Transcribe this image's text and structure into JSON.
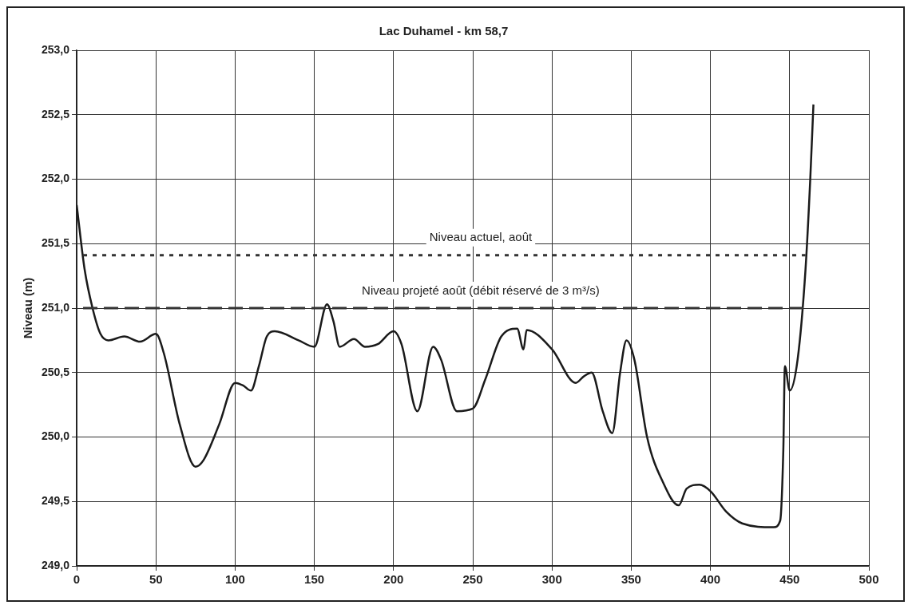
{
  "chart_data": {
    "type": "line",
    "title": "Lac Duhamel - km 58,7",
    "ylabel": "Niveau (m)",
    "xlim": [
      0,
      500
    ],
    "xticks": [
      0,
      50,
      100,
      150,
      200,
      250,
      300,
      350,
      400,
      450,
      500
    ],
    "ylim": [
      249,
      253
    ],
    "yticks": [
      {
        "value": 249,
        "label": "249,0"
      },
      {
        "value": 249.5,
        "label": "249,5"
      },
      {
        "value": 250,
        "label": "250,0"
      },
      {
        "value": 250.5,
        "label": "250,5"
      },
      {
        "value": 251,
        "label": "251,0"
      },
      {
        "value": 251.5,
        "label": "251,5"
      },
      {
        "value": 252,
        "label": "252,0"
      },
      {
        "value": 252.5,
        "label": "252,5"
      },
      {
        "value": 253,
        "label": "253,0"
      }
    ],
    "grid": true,
    "legend": false,
    "marker": "none",
    "line_style": "solid",
    "series": [
      {
        "color": "#1a1a1a",
        "x": [
          0,
          5,
          10,
          15,
          20,
          30,
          40,
          50,
          55,
          65,
          75,
          80,
          90,
          100,
          105,
          110,
          115,
          120,
          125,
          140,
          150,
          158,
          162,
          166,
          175,
          182,
          190,
          200,
          205,
          215,
          225,
          230,
          240,
          250,
          258,
          268,
          278,
          282,
          284,
          300,
          315,
          320,
          325,
          332,
          338,
          343,
          347,
          352,
          360,
          370,
          380,
          385,
          393,
          400,
          410,
          420,
          440,
          444,
          446,
          447,
          450,
          455,
          460,
          463,
          465
        ],
        "values": [
          251.8,
          251.3,
          251.0,
          250.8,
          250.75,
          250.78,
          250.74,
          250.8,
          250.65,
          250.1,
          249.77,
          249.82,
          250.1,
          250.42,
          250.4,
          250.36,
          250.55,
          250.78,
          250.82,
          250.75,
          250.7,
          251.03,
          250.9,
          250.7,
          250.76,
          250.7,
          250.72,
          250.82,
          250.72,
          250.2,
          250.7,
          250.6,
          250.2,
          250.22,
          250.45,
          250.78,
          250.84,
          250.68,
          250.83,
          250.68,
          250.42,
          250.47,
          250.5,
          250.2,
          250.03,
          250.5,
          250.75,
          250.6,
          250.0,
          249.65,
          249.47,
          249.6,
          249.63,
          249.58,
          249.42,
          249.33,
          249.3,
          249.35,
          249.9,
          250.55,
          250.36,
          250.6,
          251.3,
          252.0,
          252.58
        ]
      }
    ],
    "ref_lines": [
      {
        "axis": "y",
        "value": 251.41,
        "label": "Niveau actuel, août",
        "color": "#333333",
        "line_style": "dotted"
      },
      {
        "axis": "y",
        "value": 251.0,
        "label": "Niveau projeté août (débit réservé de 3 m³/s)",
        "color": "#333333",
        "line_style": "dashed"
      }
    ]
  }
}
